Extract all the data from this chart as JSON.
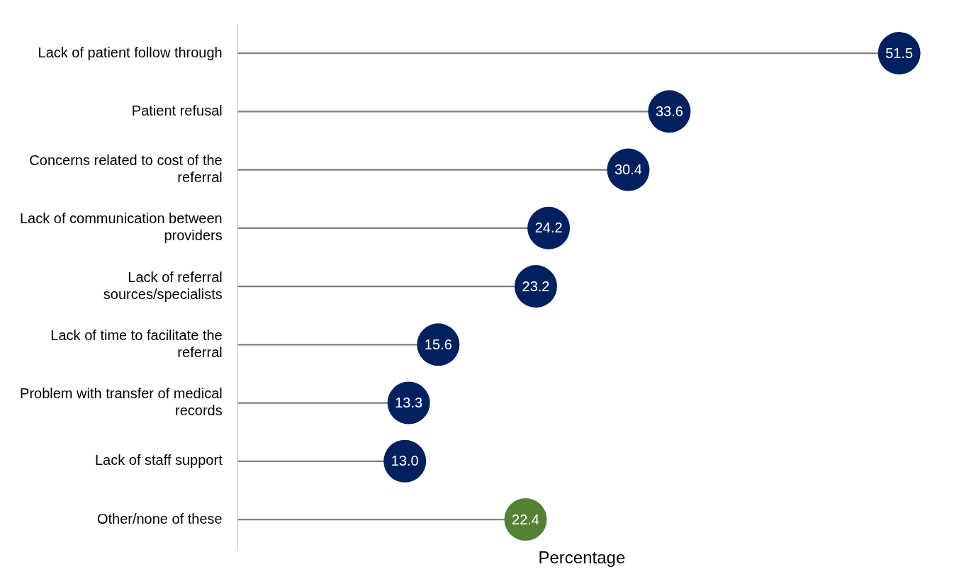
{
  "chart_data": {
    "type": "lollipop",
    "orientation": "horizontal",
    "xlabel": "Percentage",
    "categories": [
      "Lack of patient follow through",
      "Patient refusal",
      "Concerns related to cost of the referral",
      "Lack of communication between providers",
      "Lack of referral sources/specialists",
      "Lack of time to facilitate the referral",
      "Problem with transfer of medical records",
      "Lack of staff support",
      "Other/none of these"
    ],
    "values": [
      51.5,
      33.6,
      30.4,
      24.2,
      23.2,
      15.6,
      13.3,
      13.0,
      22.4
    ],
    "value_labels": [
      "51.5",
      "33.6",
      "30.4",
      "24.2",
      "23.2",
      "15.6",
      "13.3",
      "13.0",
      "22.4"
    ],
    "colors": [
      "#002060",
      "#002060",
      "#002060",
      "#002060",
      "#002060",
      "#002060",
      "#002060",
      "#002060",
      "#548235"
    ]
  }
}
